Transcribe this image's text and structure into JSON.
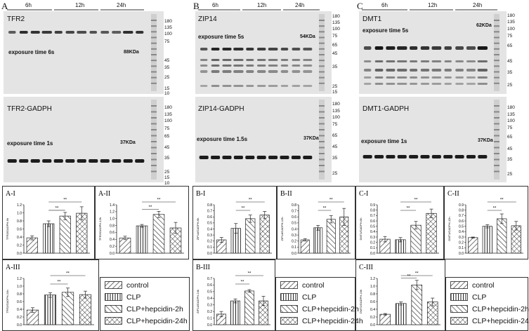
{
  "panels": [
    {
      "letter": "A",
      "protein": "TFR2",
      "gapdh": "TFR2-GADPH",
      "exp_top": "exposure time 6s",
      "exp_bottom": "exposure time 1s",
      "kda_top": "88KDa",
      "kda_bottom": "37KDa"
    },
    {
      "letter": "B",
      "protein": "ZIP14",
      "gapdh": "ZIP14-GADPH",
      "exp_top": "exposure time 5s",
      "exp_bottom": "exposure time 1.5s",
      "kda_top": "54KDa",
      "kda_bottom": "37KDa"
    },
    {
      "letter": "C",
      "protein": "DMT1",
      "gapdh": "DMT1-GADPH",
      "exp_top": "exposure time 5s",
      "exp_bottom": "exposure time 1s",
      "kda_top": "62KDa",
      "kda_bottom": "37KDa"
    }
  ],
  "timepoints": [
    "6h",
    "12h",
    "24h"
  ],
  "mw_markers": [
    "180",
    "135",
    "100",
    "75",
    "65",
    "45",
    "35",
    "25",
    "15",
    "10"
  ],
  "legend": {
    "items": [
      {
        "label": "control",
        "pattern": "diag"
      },
      {
        "label": "CLP",
        "pattern": "vert"
      },
      {
        "label": "CLP+hepcidin-2h",
        "pattern": "diag-rev"
      },
      {
        "label": "CLP+hepcidin-24h",
        "pattern": "cross"
      }
    ]
  },
  "significance": "**",
  "chart_data": [
    {
      "id": "A-I",
      "type": "bar",
      "ylabel": "TFR2/GADPH-6h",
      "ylim": [
        0,
        1.2
      ],
      "yticks": [
        "0.0",
        "0.2",
        "0.4",
        "0.6",
        "0.8",
        "1.0",
        "1.2"
      ],
      "categories": [
        "control",
        "CLP",
        "CLP+hepcidin-2h",
        "CLP+hepcidin-24h"
      ],
      "values": [
        0.38,
        0.73,
        0.92,
        0.99
      ],
      "errors": [
        0.05,
        0.07,
        0.09,
        0.16
      ]
    },
    {
      "id": "A-II",
      "type": "bar",
      "ylabel": "TFR2/GADPH-12h",
      "ylim": [
        0,
        1.4
      ],
      "yticks": [
        "0.0",
        "0.2",
        "0.4",
        "0.6",
        "0.8",
        "1.0",
        "1.2",
        "1.4"
      ],
      "categories": [
        "control",
        "CLP",
        "CLP+hepcidin-2h",
        "CLP+hepcidin-24h"
      ],
      "values": [
        0.44,
        0.79,
        1.12,
        0.73
      ],
      "errors": [
        0.05,
        0.04,
        0.09,
        0.16
      ]
    },
    {
      "id": "A-III",
      "type": "bar",
      "ylabel": "TFR2/GADPH-24h",
      "ylim": [
        0,
        1.2
      ],
      "yticks": [
        "0.0",
        "0.2",
        "0.4",
        "0.6",
        "0.8",
        "1.0",
        "1.2"
      ],
      "categories": [
        "control",
        "CLP",
        "CLP+hepcidin-2h",
        "CLP+hepcidin-24h"
      ],
      "values": [
        0.38,
        0.77,
        0.84,
        0.78
      ],
      "errors": [
        0.06,
        0.06,
        0.11,
        0.09
      ]
    },
    {
      "id": "B-I",
      "type": "bar",
      "ylabel": "ZIP14/GADPH-6h",
      "ylim": [
        0,
        0.8
      ],
      "yticks": [
        "0.0",
        "0.1",
        "0.2",
        "0.3",
        "0.4",
        "0.5",
        "0.6",
        "0.7",
        "0.8"
      ],
      "categories": [
        "control",
        "CLP",
        "CLP+hepcidin-2h",
        "CLP+hepcidin-24h"
      ],
      "values": [
        0.22,
        0.41,
        0.57,
        0.63
      ],
      "errors": [
        0.04,
        0.08,
        0.06,
        0.06
      ]
    },
    {
      "id": "B-II",
      "type": "bar",
      "ylabel": "ZIP14/GADPH-12h",
      "ylim": [
        0,
        0.8
      ],
      "yticks": [
        "0.0",
        "0.1",
        "0.2",
        "0.3",
        "0.4",
        "0.5",
        "0.6",
        "0.7",
        "0.8"
      ],
      "categories": [
        "control",
        "CLP",
        "CLP+hepcidin-2h",
        "CLP+hepcidin-24h"
      ],
      "values": [
        0.22,
        0.42,
        0.56,
        0.6
      ],
      "errors": [
        0.02,
        0.04,
        0.06,
        0.14
      ]
    },
    {
      "id": "B-III",
      "type": "bar",
      "ylabel": "ZIP14/GADPH-24h",
      "ylim": [
        0,
        0.7
      ],
      "yticks": [
        "0.0",
        "0.1",
        "0.2",
        "0.3",
        "0.4",
        "0.5",
        "0.6",
        "0.7"
      ],
      "categories": [
        "control",
        "CLP",
        "CLP+hepcidin-2h",
        "CLP+hepcidin-24h"
      ],
      "values": [
        0.16,
        0.36,
        0.51,
        0.36
      ],
      "errors": [
        0.04,
        0.03,
        0.02,
        0.07
      ]
    },
    {
      "id": "C-I",
      "type": "bar",
      "ylabel": "DMT1/GADPH-6h",
      "ylim": [
        0,
        0.9
      ],
      "yticks": [
        "0.0",
        "0.1",
        "0.2",
        "0.3",
        "0.4",
        "0.5",
        "0.6",
        "0.7",
        "0.8",
        "0.9"
      ],
      "categories": [
        "control",
        "CLP",
        "CLP+hepcidin-2h",
        "CLP+hepcidin-24h"
      ],
      "values": [
        0.26,
        0.25,
        0.52,
        0.74
      ],
      "errors": [
        0.05,
        0.04,
        0.07,
        0.08
      ]
    },
    {
      "id": "C-II",
      "type": "bar",
      "ylabel": "DMT1/GADPH-12h",
      "ylim": [
        0,
        0.9
      ],
      "yticks": [
        "0.0",
        "0.1",
        "0.2",
        "0.3",
        "0.4",
        "0.5",
        "0.6",
        "0.7",
        "0.8",
        "0.9"
      ],
      "categories": [
        "control",
        "CLP",
        "CLP+hepcidin-2h",
        "CLP+hepcidin-24h"
      ],
      "values": [
        0.29,
        0.5,
        0.64,
        0.51
      ],
      "errors": [
        0.01,
        0.03,
        0.09,
        0.08
      ]
    },
    {
      "id": "C-III",
      "type": "bar",
      "ylabel": "DMT1/GADPH-24h",
      "ylim": [
        0,
        1.2
      ],
      "yticks": [
        "0.0",
        "0.2",
        "0.4",
        "0.6",
        "0.8",
        "1.0",
        "1.2"
      ],
      "categories": [
        "control",
        "CLP",
        "CLP+hepcidin-2h",
        "CLP+hepcidin-24h"
      ],
      "values": [
        0.27,
        0.55,
        1.03,
        0.59
      ],
      "errors": [
        0.02,
        0.04,
        0.12,
        0.1
      ]
    }
  ]
}
